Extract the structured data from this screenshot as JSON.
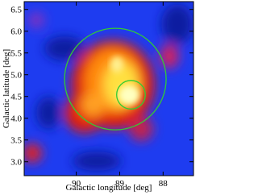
{
  "chart_data": {
    "type": "sky-map",
    "xlabel": "Galactic longitude [deg]",
    "ylabel": "Galactic latitude [deg]",
    "xlim": [
      91.2,
      87.3
    ],
    "xticks": [
      90,
      89,
      88
    ],
    "ylim": [
      2.68,
      6.68
    ],
    "yticks": [
      {
        "value": 3,
        "label": "3.0"
      },
      3.5,
      {
        "value": 4,
        "label": "4.0"
      },
      4.5,
      {
        "value": 5,
        "label": "5.0"
      },
      5.5,
      {
        "value": 6,
        "label": "6.0"
      },
      6.5
    ],
    "circles": {
      "color": "#33cc33",
      "x": [
        89.1,
        88.74
      ],
      "y": [
        4.9,
        4.54
      ],
      "r": [
        1.17,
        0.33
      ]
    }
  }
}
